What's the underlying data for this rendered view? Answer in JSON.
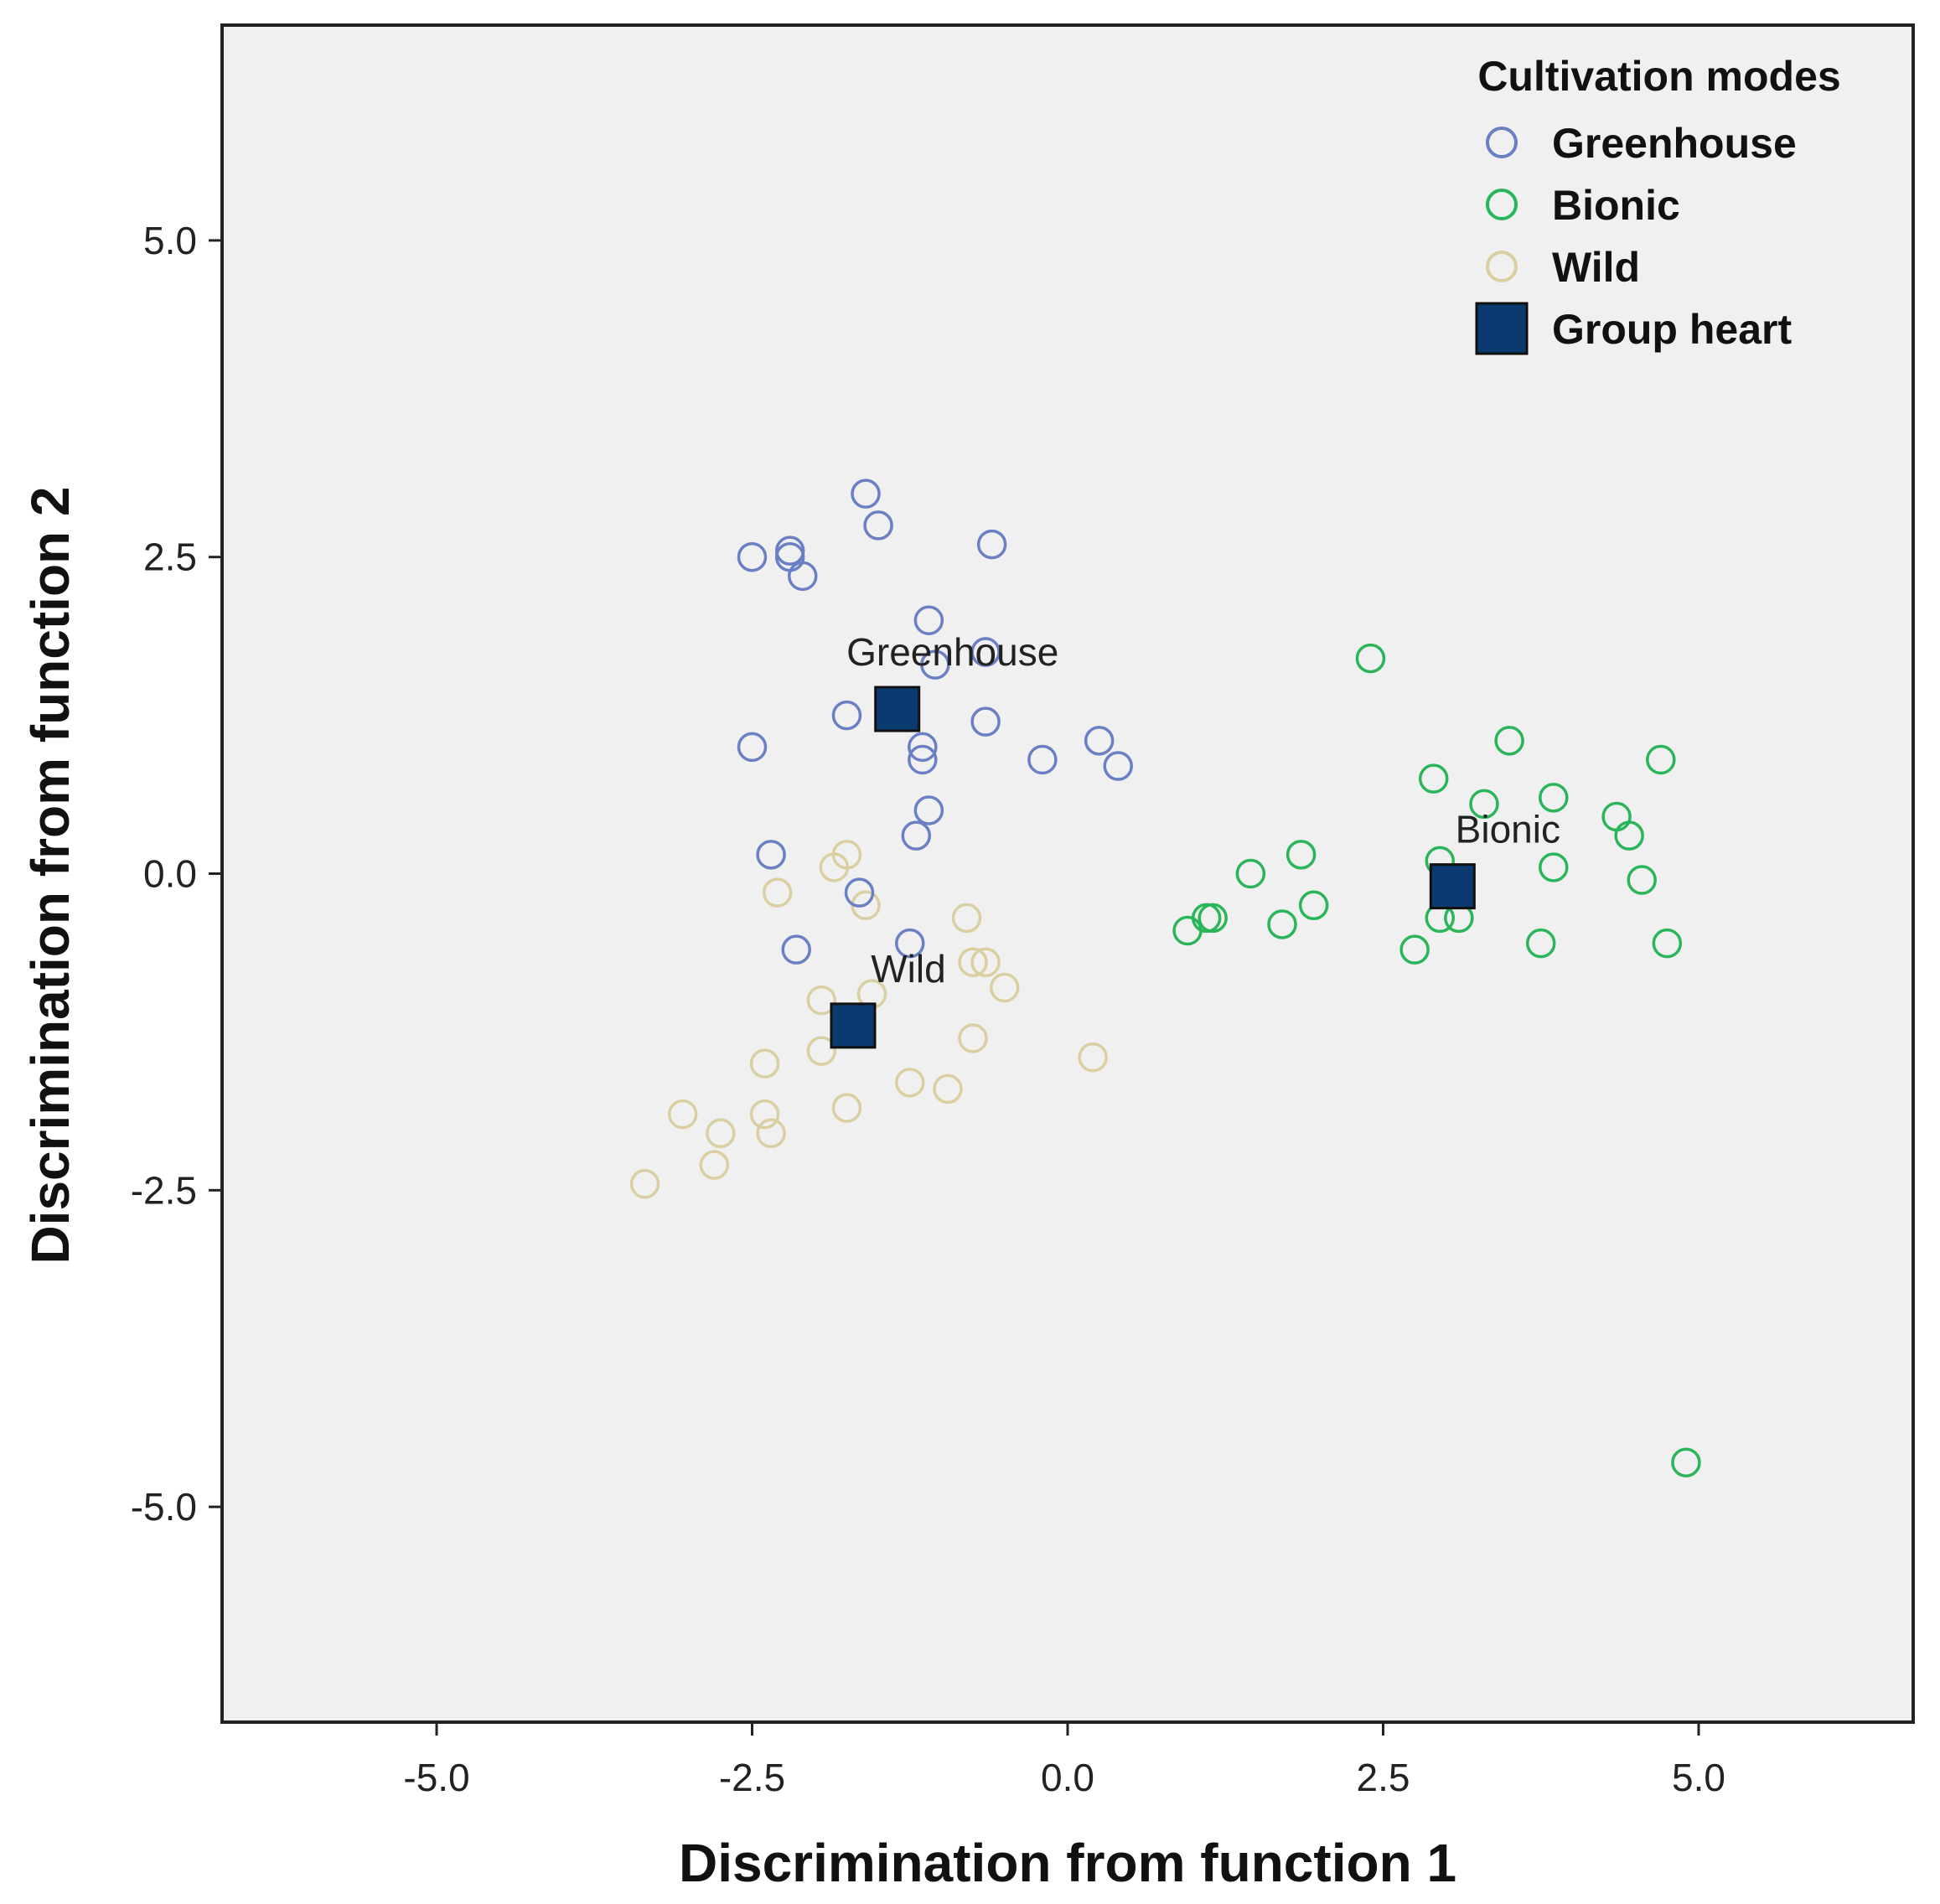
{
  "chart_data": {
    "type": "scatter",
    "title": "",
    "xlabel": "Discrimination from function 1",
    "ylabel": "Discrimination from function 2",
    "xlim": [
      -6.7,
      6.7
    ],
    "ylim": [
      -6.7,
      6.7
    ],
    "xticks": [
      -5.0,
      -2.5,
      0.0,
      2.5,
      5.0
    ],
    "yticks": [
      -5.0,
      -2.5,
      0.0,
      2.5,
      5.0
    ],
    "xtick_labels": [
      "-5.0",
      "-2.5",
      "0.0",
      "2.5",
      "5.0"
    ],
    "ytick_labels": [
      "-5.0",
      "-2.5",
      "0.0",
      "2.5",
      "5.0"
    ],
    "grid": false,
    "background": "#f0f0f0",
    "legend": {
      "title": "Cultivation modes",
      "position": "top-right",
      "entries": [
        {
          "label": "Greenhouse",
          "marker": "circle-open",
          "color": "#6a7fc4"
        },
        {
          "label": "Bionic",
          "marker": "circle-open",
          "color": "#2bb559"
        },
        {
          "label": "Wild",
          "marker": "circle-open",
          "color": "#d9cfa0"
        },
        {
          "label": "Group heart",
          "marker": "square",
          "color": "#0b3a70"
        }
      ]
    },
    "series": [
      {
        "name": "Greenhouse",
        "color": "#6a7fc4",
        "points": [
          [
            -1.6,
            3.0
          ],
          [
            -1.5,
            2.75
          ],
          [
            -2.5,
            2.5
          ],
          [
            -2.2,
            2.55
          ],
          [
            -2.2,
            2.5
          ],
          [
            -2.1,
            2.35
          ],
          [
            -0.6,
            2.6
          ],
          [
            -1.1,
            2.0
          ],
          [
            -1.05,
            1.65
          ],
          [
            -0.65,
            1.75
          ],
          [
            -1.75,
            1.25
          ],
          [
            -0.65,
            1.2
          ],
          [
            -2.5,
            1.0
          ],
          [
            -1.15,
            1.0
          ],
          [
            -1.15,
            0.9
          ],
          [
            -0.2,
            0.9
          ],
          [
            0.25,
            1.05
          ],
          [
            0.4,
            0.85
          ],
          [
            -1.1,
            0.5
          ],
          [
            -1.2,
            0.3
          ],
          [
            -2.35,
            0.15
          ],
          [
            -1.65,
            -0.15
          ],
          [
            -1.25,
            -0.55
          ],
          [
            -2.15,
            -0.6
          ]
        ]
      },
      {
        "name": "Bionic",
        "color": "#2bb559",
        "points": [
          [
            2.4,
            1.7
          ],
          [
            3.5,
            1.05
          ],
          [
            4.7,
            0.9
          ],
          [
            2.9,
            0.75
          ],
          [
            3.3,
            0.55
          ],
          [
            3.85,
            0.6
          ],
          [
            4.35,
            0.45
          ],
          [
            4.45,
            0.3
          ],
          [
            3.85,
            0.05
          ],
          [
            1.85,
            0.15
          ],
          [
            1.45,
            0.0
          ],
          [
            4.55,
            -0.05
          ],
          [
            2.95,
            0.1
          ],
          [
            1.1,
            -0.35
          ],
          [
            1.15,
            -0.35
          ],
          [
            0.95,
            -0.45
          ],
          [
            1.7,
            -0.4
          ],
          [
            1.95,
            -0.25
          ],
          [
            2.95,
            -0.35
          ],
          [
            3.1,
            -0.35
          ],
          [
            2.75,
            -0.6
          ],
          [
            3.75,
            -0.55
          ],
          [
            4.75,
            -0.55
          ],
          [
            4.9,
            -4.65
          ]
        ]
      },
      {
        "name": "Wild",
        "color": "#d9cfa0",
        "points": [
          [
            -1.75,
            0.15
          ],
          [
            -1.85,
            0.05
          ],
          [
            -2.3,
            -0.15
          ],
          [
            -1.6,
            -0.25
          ],
          [
            -0.8,
            -0.35
          ],
          [
            -0.75,
            -0.7
          ],
          [
            -0.65,
            -0.7
          ],
          [
            -0.5,
            -0.9
          ],
          [
            -1.95,
            -1.0
          ],
          [
            -1.55,
            -0.95
          ],
          [
            -0.75,
            -1.3
          ],
          [
            -2.4,
            -1.5
          ],
          [
            -1.95,
            -1.4
          ],
          [
            0.2,
            -1.45
          ],
          [
            -1.25,
            -1.65
          ],
          [
            -0.95,
            -1.7
          ],
          [
            -3.05,
            -1.9
          ],
          [
            -2.4,
            -1.9
          ],
          [
            -1.75,
            -1.85
          ],
          [
            -2.75,
            -2.05
          ],
          [
            -2.35,
            -2.05
          ],
          [
            -2.8,
            -2.3
          ],
          [
            -3.35,
            -2.45
          ]
        ]
      }
    ],
    "centroids": [
      {
        "label": "Greenhouse",
        "x": -1.35,
        "y": 1.3
      },
      {
        "label": "Bionic",
        "x": 3.05,
        "y": -0.1
      },
      {
        "label": "Wild",
        "x": -1.7,
        "y": -1.2
      }
    ],
    "centroid_color": "#0b3a70"
  }
}
